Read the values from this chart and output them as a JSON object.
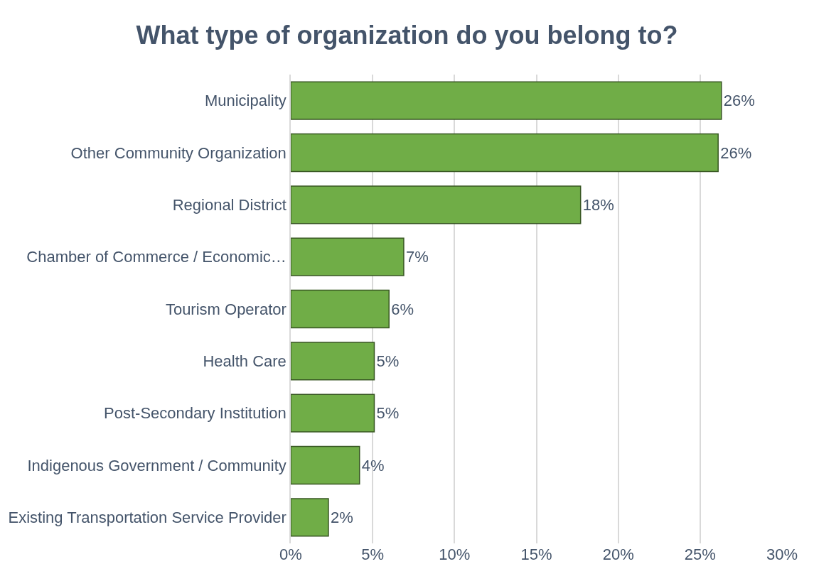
{
  "chart_data": {
    "type": "bar",
    "orientation": "horizontal",
    "title": "What type of organization do you belong to?",
    "categories": [
      "Municipality",
      "Other Community Organization",
      "Regional District",
      "Chamber of Commerce / Economic…",
      "Tourism Operator",
      "Health Care",
      "Post-Secondary Institution",
      "Indigenous Government / Community",
      "Existing Transportation Service Provider"
    ],
    "values": [
      26.3,
      26.1,
      17.7,
      6.9,
      6.0,
      5.1,
      5.1,
      4.2,
      2.3
    ],
    "value_labels": [
      "26%",
      "26%",
      "18%",
      "7%",
      "6%",
      "5%",
      "5%",
      "4%",
      "2%"
    ],
    "color": "#70ad47",
    "xlim": [
      0,
      30
    ],
    "xticks": [
      {
        "value": 0,
        "label": "0%"
      },
      {
        "value": 5,
        "label": "5%"
      },
      {
        "value": 10,
        "label": "10%"
      },
      {
        "value": 15,
        "label": "15%"
      },
      {
        "value": 20,
        "label": "20%"
      },
      {
        "value": 25,
        "label": "25%"
      },
      {
        "value": 30,
        "label": "30%"
      }
    ],
    "grid": "x",
    "legend": false
  }
}
